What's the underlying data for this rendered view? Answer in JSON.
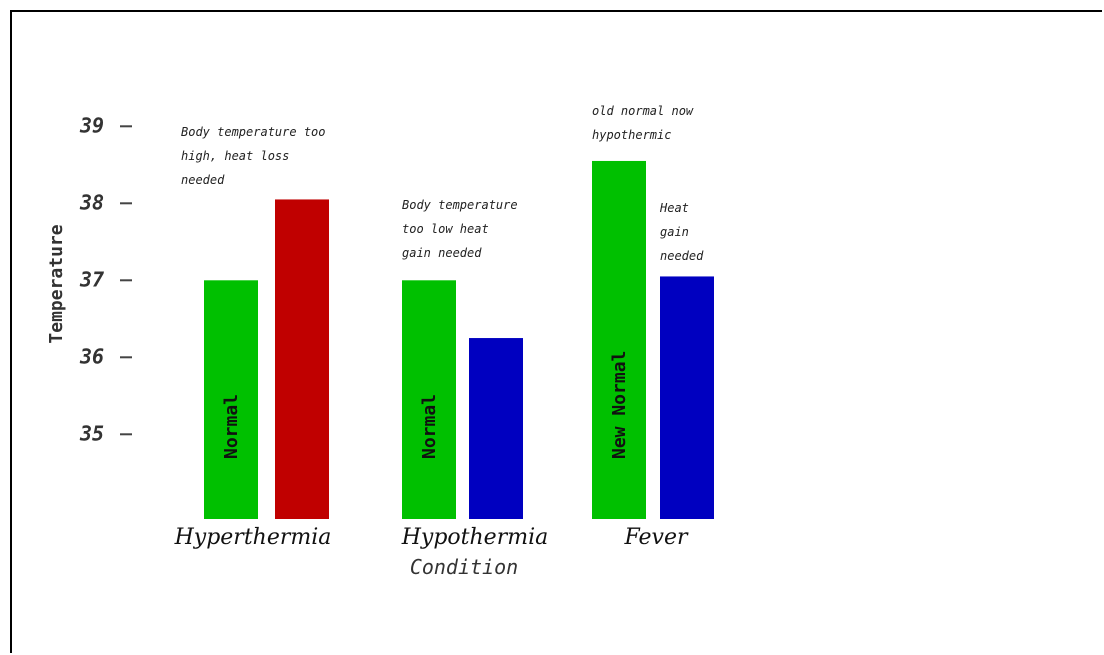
{
  "chart_data": {
    "type": "bar",
    "ylabel": "Temperature",
    "xlabel": "Condition",
    "y_ticks": [
      39,
      38,
      37,
      36,
      35
    ],
    "ylim": [
      33.9,
      39.6
    ],
    "grid": false,
    "categories": [
      "Hyperthermia",
      "Hypothermia",
      "Fever"
    ],
    "bars": [
      {
        "category": "Hyperthermia",
        "slot": 0,
        "value": 37.0,
        "color": "#00c000",
        "label": "Normal"
      },
      {
        "category": "Hyperthermia",
        "slot": 1,
        "value": 38.05,
        "color": "#c00000",
        "label": ""
      },
      {
        "category": "Hypothermia",
        "slot": 0,
        "value": 37.0,
        "color": "#00c000",
        "label": "Normal"
      },
      {
        "category": "Hypothermia",
        "slot": 1,
        "value": 36.25,
        "color": "#0000c0",
        "label": ""
      },
      {
        "category": "Fever",
        "slot": 0,
        "value": 38.55,
        "color": "#00c000",
        "label": "New Normal"
      },
      {
        "category": "Fever",
        "slot": 1,
        "value": 37.05,
        "color": "#0000c0",
        "label": ""
      }
    ],
    "annotations": [
      {
        "category": "Hyperthermia",
        "lines": [
          "Body temperature too",
          "high, heat loss",
          "needed"
        ]
      },
      {
        "category": "Hypothermia",
        "lines": [
          "Body temperature",
          "too low  heat",
          "gain needed"
        ]
      },
      {
        "category": "Fever",
        "lines": [
          "old normal now",
          "hypothermic"
        ]
      },
      {
        "category": "Fever",
        "lines": [
          "Heat",
          "gain",
          "needed"
        ]
      }
    ]
  }
}
